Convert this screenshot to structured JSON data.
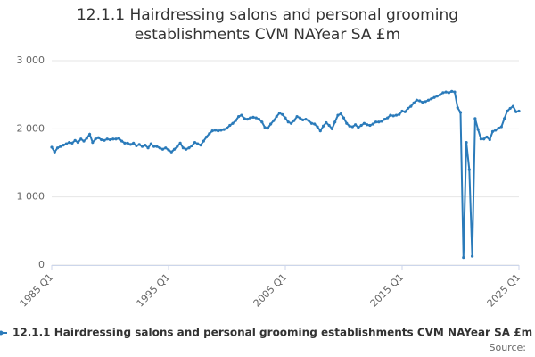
{
  "chart_data": {
    "type": "line",
    "title": "12.1.1 Hairdressing salons and personal grooming establishments CVM NAYear SA £m",
    "source": "Source:",
    "categories": [
      "1985 Q1",
      null,
      null,
      null,
      null,
      null,
      null,
      null,
      null,
      null,
      null,
      null,
      null,
      null,
      null,
      null,
      null,
      null,
      null,
      null,
      null,
      null,
      null,
      null,
      null,
      null,
      null,
      null,
      null,
      null,
      null,
      null,
      null,
      null,
      null,
      null,
      null,
      null,
      null,
      null,
      "1995 Q1",
      null,
      null,
      null,
      null,
      null,
      null,
      null,
      null,
      null,
      null,
      null,
      null,
      null,
      null,
      null,
      null,
      null,
      null,
      null,
      null,
      null,
      null,
      null,
      null,
      null,
      null,
      null,
      null,
      null,
      null,
      null,
      null,
      null,
      null,
      null,
      null,
      null,
      null,
      null,
      "2005 Q1",
      null,
      null,
      null,
      null,
      null,
      null,
      null,
      null,
      null,
      null,
      null,
      null,
      null,
      null,
      null,
      null,
      null,
      null,
      null,
      null,
      null,
      null,
      null,
      null,
      null,
      null,
      null,
      null,
      null,
      null,
      null,
      null,
      null,
      null,
      null,
      null,
      null,
      null,
      null,
      "2015 Q1",
      null,
      null,
      null,
      null,
      null,
      null,
      null,
      null,
      null,
      null,
      null,
      null,
      null,
      null,
      null,
      null,
      null,
      null,
      null,
      null,
      null,
      null,
      null,
      null,
      null,
      null,
      null,
      null,
      null,
      null,
      null,
      null,
      null,
      null,
      null,
      null,
      null,
      null,
      null,
      "2025 Q1"
    ],
    "series": [
      {
        "name": "12.1.1 Hairdressing salons and personal grooming establishments CVM NAYear SA £m",
        "color": "#2b7bba",
        "values": [
          1730,
          1660,
          1720,
          1740,
          1760,
          1780,
          1800,
          1790,
          1830,
          1800,
          1850,
          1820,
          1860,
          1920,
          1800,
          1850,
          1870,
          1840,
          1830,
          1850,
          1840,
          1850,
          1850,
          1860,
          1820,
          1790,
          1790,
          1770,
          1790,
          1750,
          1770,
          1740,
          1760,
          1720,
          1780,
          1740,
          1740,
          1720,
          1700,
          1720,
          1690,
          1660,
          1700,
          1740,
          1790,
          1720,
          1700,
          1720,
          1750,
          1800,
          1780,
          1760,
          1820,
          1880,
          1930,
          1970,
          1980,
          1970,
          1980,
          1990,
          2010,
          2050,
          2080,
          2120,
          2180,
          2200,
          2150,
          2140,
          2160,
          2170,
          2160,
          2140,
          2100,
          2020,
          2010,
          2070,
          2120,
          2180,
          2230,
          2210,
          2160,
          2100,
          2080,
          2120,
          2180,
          2160,
          2130,
          2140,
          2120,
          2080,
          2070,
          2030,
          1970,
          2040,
          2090,
          2050,
          2000,
          2100,
          2200,
          2220,
          2160,
          2080,
          2040,
          2030,
          2060,
          2020,
          2050,
          2080,
          2060,
          2050,
          2070,
          2100,
          2100,
          2110,
          2140,
          2160,
          2200,
          2190,
          2200,
          2210,
          2260,
          2250,
          2300,
          2330,
          2380,
          2420,
          2410,
          2390,
          2400,
          2420,
          2440,
          2460,
          2480,
          2500,
          2530,
          2540,
          2530,
          2550,
          2540,
          2310,
          2240,
          110,
          1800,
          1400,
          130,
          2150,
          1990,
          1850,
          1850,
          1880,
          1840,
          1960,
          1980,
          2010,
          2030,
          2150,
          2260,
          2300,
          2330,
          2250,
          2260
        ]
      }
    ],
    "ylim": [
      0,
      3000
    ],
    "yticks": [
      {
        "value": 0,
        "label": "0"
      },
      {
        "value": 1000,
        "label": "1 000"
      },
      {
        "value": 2000,
        "label": "2 000"
      },
      {
        "value": 3000,
        "label": "3 000"
      }
    ],
    "grid": true
  }
}
